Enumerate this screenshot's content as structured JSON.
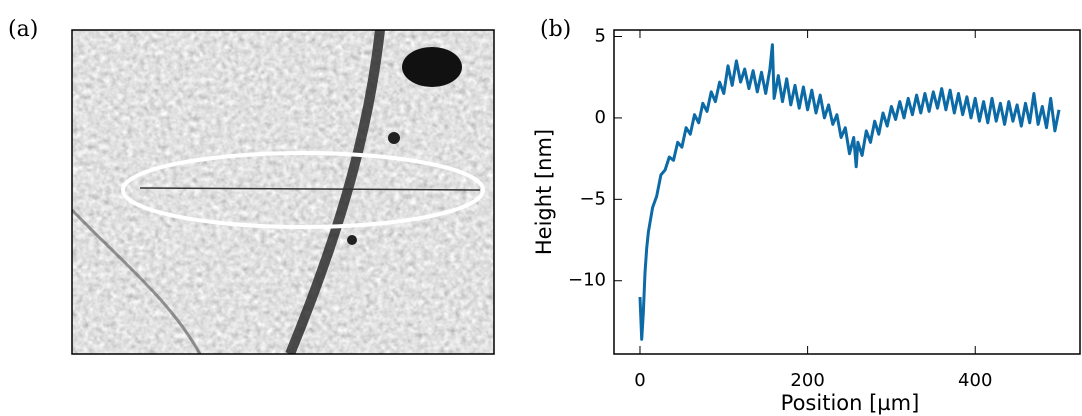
{
  "panel_a": {
    "label": "(a)"
  },
  "chart_data": {
    "type": "line",
    "panel_label": "(b)",
    "x_label": "Position [µm]",
    "y_label": "Height [nm]",
    "xlim": [
      -31,
      525
    ],
    "ylim": [
      -14.5,
      5.4
    ],
    "xticks": [
      0,
      200,
      400
    ],
    "yticks": [
      {
        "value": -10,
        "label": "−10"
      },
      {
        "value": -5,
        "label": "−5"
      },
      0,
      5
    ],
    "x": [
      0,
      2,
      4,
      6,
      8,
      10,
      15,
      20,
      25,
      30,
      35,
      40,
      45,
      50,
      55,
      60,
      65,
      70,
      75,
      80,
      85,
      90,
      95,
      100,
      105,
      110,
      115,
      120,
      125,
      130,
      135,
      140,
      145,
      150,
      155,
      158,
      160,
      165,
      170,
      175,
      180,
      185,
      190,
      195,
      200,
      205,
      210,
      215,
      220,
      225,
      230,
      235,
      240,
      245,
      250,
      255,
      258,
      260,
      265,
      270,
      275,
      280,
      285,
      290,
      295,
      300,
      305,
      310,
      315,
      320,
      325,
      330,
      335,
      340,
      345,
      350,
      355,
      360,
      365,
      370,
      375,
      380,
      385,
      390,
      395,
      400,
      405,
      410,
      415,
      420,
      425,
      430,
      435,
      440,
      445,
      450,
      455,
      460,
      465,
      470,
      475,
      480,
      485,
      490,
      495,
      500
    ],
    "series": [
      {
        "color": "#0c6aa6",
        "values": [
          -11,
          -13.6,
          -12,
          -9.5,
          -8,
          -7,
          -5.5,
          -4.8,
          -3.5,
          -3.2,
          -2.4,
          -2.6,
          -1.5,
          -1.8,
          -0.6,
          -1,
          0.2,
          -0.3,
          0.9,
          0.4,
          1.6,
          1,
          2.2,
          1.5,
          3.2,
          2,
          3.5,
          2.2,
          3,
          1.8,
          2.9,
          1.6,
          2.8,
          1.5,
          3,
          4.5,
          1.2,
          2.6,
          1,
          2.4,
          0.8,
          2,
          0.6,
          1.9,
          0.5,
          1.7,
          0.3,
          1.4,
          0,
          0.8,
          -0.4,
          0.2,
          -1.2,
          -0.6,
          -2.2,
          -1.2,
          -3,
          -1.5,
          -2.3,
          -0.8,
          -1.5,
          -0.2,
          -1,
          0.3,
          -0.5,
          0.7,
          -0.1,
          1,
          0,
          1.2,
          0.2,
          1.4,
          0.3,
          1.5,
          0.4,
          1.6,
          0.6,
          1.8,
          0.5,
          1.7,
          0.3,
          1.5,
          0.2,
          1.3,
          0,
          1.2,
          -0.2,
          1,
          -0.3,
          1.2,
          -0.2,
          0.9,
          -0.4,
          1,
          -0.2,
          0.8,
          -0.5,
          0.9,
          -0.3,
          1.5,
          -0.4,
          0.7,
          -0.6,
          1.2,
          -0.8,
          0.5
        ]
      }
    ]
  }
}
